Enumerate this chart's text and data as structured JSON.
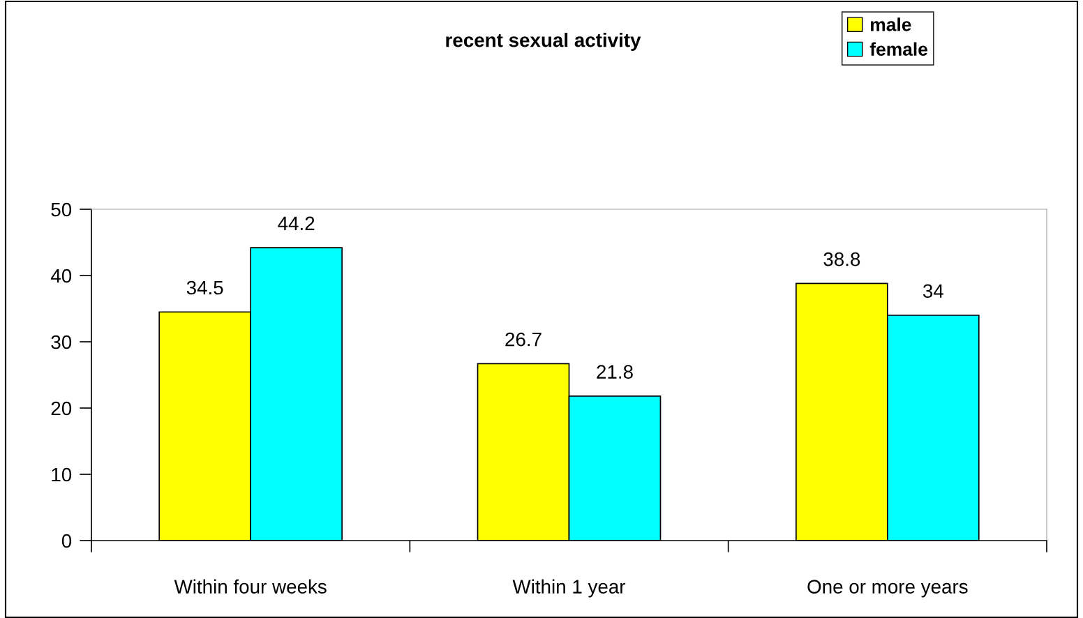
{
  "chart_data": {
    "type": "bar",
    "title": "recent sexual activity",
    "categories": [
      "Within four weeks",
      "Within 1 year",
      "One or more years"
    ],
    "series": [
      {
        "name": "male",
        "color": "#ffff00",
        "values": [
          34.5,
          26.7,
          38.8
        ]
      },
      {
        "name": "female",
        "color": "#00ffff",
        "values": [
          44.2,
          21.8,
          34
        ]
      }
    ],
    "ylim": [
      0,
      50
    ],
    "yticks": [
      0,
      10,
      20,
      30,
      40,
      50
    ],
    "grid": false,
    "legend": "top right",
    "data_labels": true
  }
}
